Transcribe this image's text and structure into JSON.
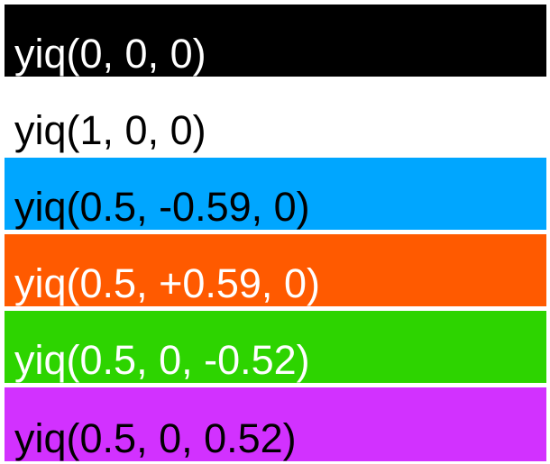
{
  "swatches": [
    {
      "label": "yiq(0, 0, 0)",
      "background": "#000000",
      "text_color": "#ffffff"
    },
    {
      "label": "yiq(1, 0, 0)",
      "background": "#ffffff",
      "text_color": "#000000"
    },
    {
      "label": "yiq(0.5, -0.59, 0)",
      "background": "#00a6ff",
      "text_color": "#000000"
    },
    {
      "label": "yiq(0.5, +0.59, 0)",
      "background": "#ff5a00",
      "text_color": "#ffffff"
    },
    {
      "label": "yiq(0.5, 0, -0.52)",
      "background": "#2dd400",
      "text_color": "#ffffff"
    },
    {
      "label": "yiq(0.5, 0, 0.52)",
      "background": "#d231ff",
      "text_color": "#000000"
    }
  ]
}
